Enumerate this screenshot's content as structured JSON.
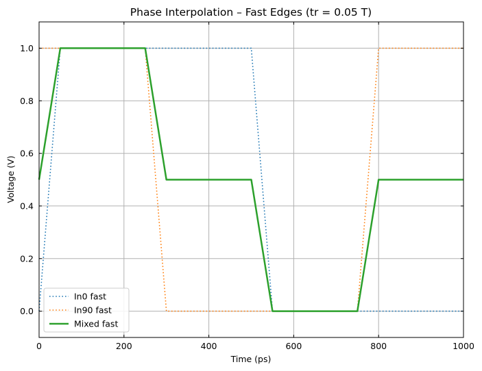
{
  "chart_data": {
    "type": "line",
    "title": "Phase Interpolation – Fast Edges (tr = 0.05 T)",
    "xlabel": "Time (ps)",
    "ylabel": "Voltage (V)",
    "xlim": [
      0,
      1000
    ],
    "ylim": [
      -0.1,
      1.1
    ],
    "xticks": [
      0,
      200,
      400,
      600,
      800,
      1000
    ],
    "xtick_labels": [
      "0",
      "200",
      "400",
      "600",
      "800",
      "1000"
    ],
    "yticks": [
      0.0,
      0.2,
      0.4,
      0.6,
      0.8,
      1.0
    ],
    "ytick_labels": [
      "0.0",
      "0.2",
      "0.4",
      "0.6",
      "0.8",
      "1.0"
    ],
    "grid": true,
    "legend_position": "lower-left",
    "series": [
      {
        "name": "In0 fast",
        "color": "#1f77b4",
        "style": "dotted",
        "x": [
          0,
          50,
          500,
          550,
          1000
        ],
        "y": [
          0,
          1,
          1,
          0,
          0
        ]
      },
      {
        "name": "In90 fast",
        "color": "#ff7f0e",
        "style": "dotted",
        "x": [
          0,
          250,
          300,
          750,
          800,
          1000
        ],
        "y": [
          1,
          1,
          0,
          0,
          1,
          1
        ]
      },
      {
        "name": "Mixed fast",
        "color": "#2ca02c",
        "style": "solid",
        "x": [
          0,
          50,
          250,
          300,
          500,
          550,
          750,
          800,
          1000
        ],
        "y": [
          0.5,
          1,
          1,
          0.5,
          0.5,
          0,
          0,
          0.5,
          0.5
        ]
      }
    ]
  }
}
